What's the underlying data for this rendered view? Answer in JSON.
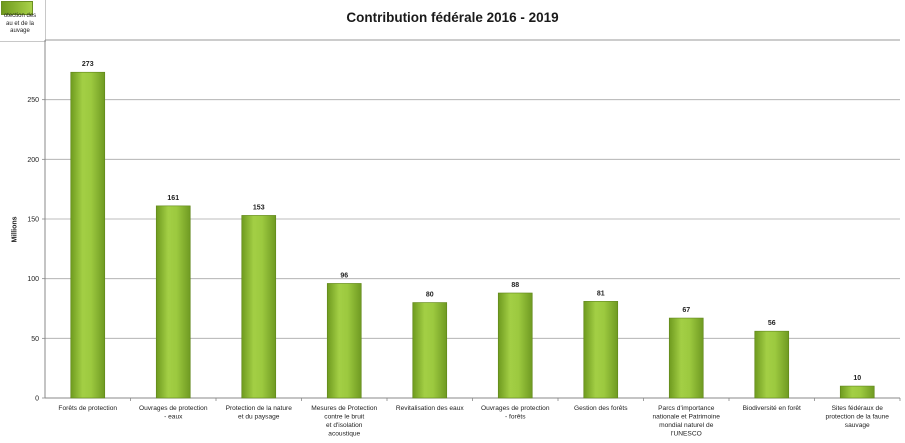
{
  "chart_data": {
    "type": "bar",
    "title": "Contribution fédérale 2016 - 2019",
    "ylabel": "Millions",
    "ylim": [
      0,
      300
    ],
    "yticks": [
      0,
      50,
      100,
      150,
      200,
      250
    ],
    "grid": true,
    "legend": "top-left",
    "series": [
      {
        "name": "Sites fédéraux de protection de la faune sauvage",
        "color": "#8fbf2e"
      }
    ],
    "legend_visible_text": "otection des\nau et de la\nauvage",
    "categories": [
      [
        "Forêts de protection"
      ],
      [
        "Ouvrages de protection",
        "- eaux"
      ],
      [
        "Protection de la nature",
        "et du paysage"
      ],
      [
        "Mesures de Protection",
        "contre le bruit",
        "et d'isolation",
        "acoustique"
      ],
      [
        "Revitalisation des eaux"
      ],
      [
        "Ouvrages de protection",
        "- forêts"
      ],
      [
        "Gestion des forêts"
      ],
      [
        "Parcs d'importance",
        "nationale et Patrimoine",
        "mondial naturel de",
        "l'UNESCO"
      ],
      [
        "Biodiversité en forêt"
      ],
      [
        "Sites fédéraux de",
        "protection de la faune",
        "sauvage"
      ]
    ],
    "values": [
      273,
      161,
      153,
      96,
      80,
      88,
      81,
      67,
      56,
      10
    ]
  }
}
